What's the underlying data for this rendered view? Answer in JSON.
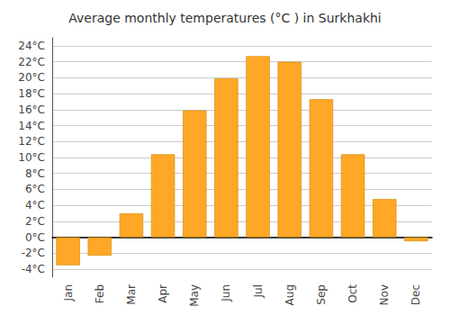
{
  "chart_data": {
    "type": "bar",
    "title": "Average monthly temperatures (°C ) in Surkhakhi",
    "categories": [
      "Jan",
      "Feb",
      "Mar",
      "Apr",
      "May",
      "Jun",
      "Jul",
      "Aug",
      "Sep",
      "Oct",
      "Nov",
      "Dec"
    ],
    "values": [
      -3.5,
      -2.3,
      3.0,
      10.4,
      15.9,
      19.9,
      22.7,
      22.0,
      17.3,
      10.4,
      4.8,
      -0.5
    ],
    "color": "#FFA726",
    "ylim": [
      -5,
      25
    ],
    "yticks": [
      {
        "value": -4,
        "label": "-4°C"
      },
      {
        "value": -2,
        "label": "-2°C"
      },
      {
        "value": 0,
        "label": "0°C"
      },
      {
        "value": 2,
        "label": "2°C"
      },
      {
        "value": 4,
        "label": "4°C"
      },
      {
        "value": 6,
        "label": "6°C"
      },
      {
        "value": 8,
        "label": "8°C"
      },
      {
        "value": 10,
        "label": "10°C"
      },
      {
        "value": 12,
        "label": "12°C"
      },
      {
        "value": 14,
        "label": "14°C"
      },
      {
        "value": 16,
        "label": "16°C"
      },
      {
        "value": 18,
        "label": "18°C"
      },
      {
        "value": 20,
        "label": "20°C"
      },
      {
        "value": 22,
        "label": "22°C"
      },
      {
        "value": 24,
        "label": "24°C"
      }
    ],
    "grid": true
  }
}
